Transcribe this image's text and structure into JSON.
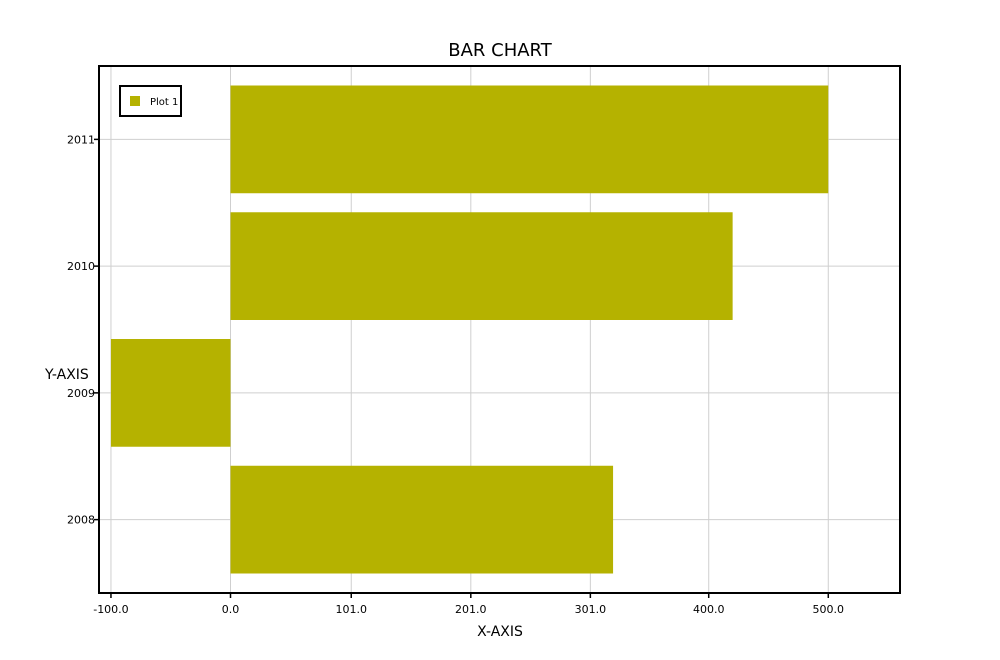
{
  "chart_data": {
    "type": "bar",
    "orientation": "horizontal",
    "title": "BAR CHART",
    "xlabel": "X-AXIS",
    "ylabel": "Y-AXIS",
    "categories": [
      "2008",
      "2009",
      "2010",
      "2011"
    ],
    "series": [
      {
        "name": "Plot 1",
        "values": [
          320,
          -100,
          420,
          500
        ],
        "color": "#b5b200"
      }
    ],
    "xlim": [
      -110,
      560
    ],
    "xticks": [
      -100.0,
      0.0,
      101.0,
      201.0,
      301.0,
      400.0,
      500.0
    ],
    "xtick_labels": [
      "-100.0",
      "0.0",
      "101.0",
      "201.0",
      "301.0",
      "400.0",
      "500.0"
    ],
    "grid": true,
    "legend_position": "top-left"
  }
}
